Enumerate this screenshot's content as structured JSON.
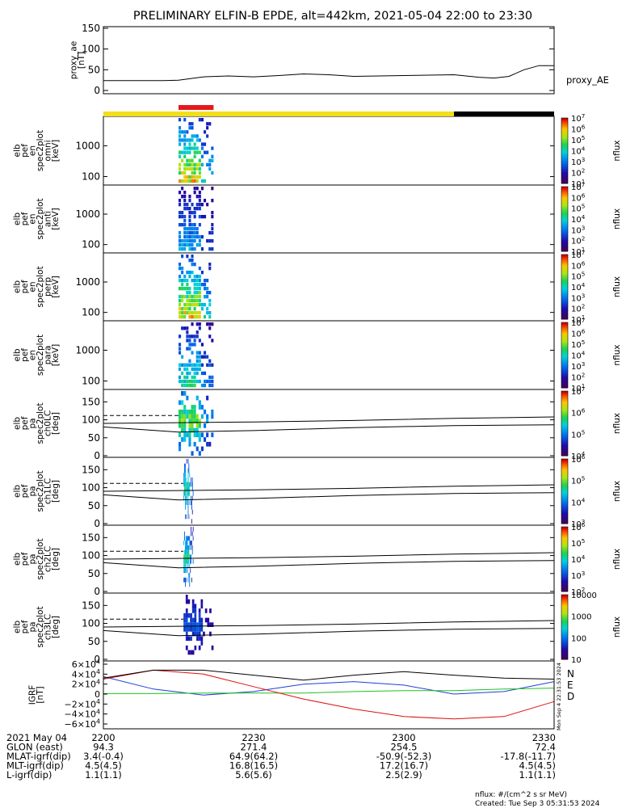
{
  "title": "PRELIMINARY ELFIN-B EPDE, alt=442km, 2021-05-04 22:00 to 23:30",
  "colors": {
    "bar_yellow": "#f2de1a",
    "bar_black": "#000000",
    "bar_red": "#e31a1c",
    "bx": "#1f3fd6",
    "by": "#22c022",
    "bz": "#e01010",
    "btot": "#000000"
  },
  "chart_data": [
    {
      "type": "line",
      "ylabel_lines": [
        "proxy_ae",
        "[nT]"
      ],
      "series_label": "proxy_AE",
      "ylim": [
        0,
        150
      ],
      "yticks": [
        "0",
        "50",
        "100",
        "150"
      ],
      "x": [
        "22:00",
        "22:03",
        "22:06",
        "22:09",
        "22:12",
        "22:15",
        "22:20",
        "22:25",
        "22:30",
        "22:35",
        "22:40",
        "22:45",
        "22:50",
        "22:55",
        "23:00",
        "23:05",
        "23:10",
        "23:15",
        "23:18",
        "23:21",
        "23:24",
        "23:27",
        "23:30"
      ],
      "values": [
        24,
        24,
        24,
        24,
        24,
        25,
        33,
        35,
        33,
        36,
        40,
        38,
        34,
        35,
        36,
        37,
        38,
        32,
        30,
        34,
        50,
        60,
        60
      ]
    },
    {
      "type": "heatmap",
      "ylabel_lines": [
        "elb",
        "pef",
        "en",
        "spec2plot",
        "omni",
        "[keV]"
      ],
      "yscale": "log",
      "ylim": [
        60,
        8000
      ],
      "yticks": [
        "100",
        "1000"
      ],
      "colorbar": {
        "label": "nflux",
        "ticks": [
          "10^1",
          "10^2",
          "10^3",
          "10^4",
          "10^5",
          "10^6",
          "10^7"
        ]
      },
      "active_window": [
        "22:15",
        "22:22"
      ],
      "peak_flux": 1000000
    },
    {
      "type": "heatmap",
      "ylabel_lines": [
        "elb",
        "pef",
        "en",
        "spec2plot",
        "anti",
        "[keV]"
      ],
      "yscale": "log",
      "ylim": [
        60,
        8000
      ],
      "yticks": [
        "100",
        "1000"
      ],
      "colorbar": {
        "label": "nflux",
        "ticks": [
          "10^1",
          "10^2",
          "10^3",
          "10^4",
          "10^5",
          "10^6",
          "10^7"
        ]
      },
      "active_window": [
        "22:15",
        "22:22"
      ],
      "peak_flux": 1000
    },
    {
      "type": "heatmap",
      "ylabel_lines": [
        "elb",
        "pef",
        "en",
        "spec2plot",
        "perp",
        "[keV]"
      ],
      "yscale": "log",
      "ylim": [
        60,
        8000
      ],
      "yticks": [
        "100",
        "1000"
      ],
      "colorbar": {
        "label": "nflux",
        "ticks": [
          "10^1",
          "10^2",
          "10^3",
          "10^4",
          "10^5",
          "10^6",
          "10^7"
        ]
      },
      "active_window": [
        "22:15",
        "22:22"
      ],
      "peak_flux": 1000000
    },
    {
      "type": "heatmap",
      "ylabel_lines": [
        "elb",
        "pef",
        "en",
        "spec2plot",
        "para",
        "[keV]"
      ],
      "yscale": "log",
      "ylim": [
        60,
        8000
      ],
      "yticks": [
        "100",
        "1000"
      ],
      "colorbar": {
        "label": "nflux",
        "ticks": [
          "10^1",
          "10^2",
          "10^3",
          "10^4",
          "10^5",
          "10^6",
          "10^7"
        ]
      },
      "active_window": [
        "22:15",
        "22:22"
      ],
      "peak_flux": 10000
    },
    {
      "type": "heatmap",
      "ylabel_lines": [
        "elb",
        "pef",
        "pa",
        "spec2plot",
        "ch0LC",
        "[deg]"
      ],
      "yscale": "linear",
      "ylim": [
        0,
        180
      ],
      "yticks": [
        "0",
        "50",
        "100",
        "150"
      ],
      "colorbar": {
        "label": "nflux",
        "ticks": [
          "10^4",
          "10^5",
          "10^6",
          "10^7"
        ]
      },
      "active_window": [
        "22:15",
        "22:22"
      ],
      "peak_flux": 100000
    },
    {
      "type": "heatmap",
      "ylabel_lines": [
        "elb",
        "pef",
        "pa",
        "spec2plot",
        "ch1LC",
        "[deg]"
      ],
      "yscale": "linear",
      "ylim": [
        0,
        180
      ],
      "yticks": [
        "0",
        "50",
        "100",
        "150"
      ],
      "colorbar": {
        "label": "nflux",
        "ticks": [
          "10^3",
          "10^4",
          "10^5",
          "10^6"
        ]
      },
      "active_window": [
        "22:16",
        "22:18"
      ],
      "peak_flux": 10000
    },
    {
      "type": "heatmap",
      "ylabel_lines": [
        "elb",
        "pef",
        "pa",
        "spec2plot",
        "ch2LC",
        "[deg]"
      ],
      "yscale": "linear",
      "ylim": [
        0,
        180
      ],
      "yticks": [
        "0",
        "50",
        "100",
        "150"
      ],
      "colorbar": {
        "label": "nflux",
        "ticks": [
          "10^2",
          "10^3",
          "10^4",
          "10^5",
          "10^6"
        ]
      },
      "active_window": [
        "22:16",
        "22:18"
      ],
      "peak_flux": 10000
    },
    {
      "type": "heatmap",
      "ylabel_lines": [
        "elb",
        "pef",
        "pa",
        "spec2plot",
        "ch3LC",
        "[deg]"
      ],
      "yscale": "linear",
      "ylim": [
        0,
        180
      ],
      "yticks": [
        "0",
        "50",
        "100",
        "150"
      ],
      "colorbar": {
        "label": "nflux",
        "ticks": [
          "10",
          "100",
          "1000",
          "10000"
        ]
      },
      "active_window": [
        "22:16",
        "22:22"
      ],
      "peak_flux": 100
    },
    {
      "type": "line",
      "ylabel_lines": [
        "IGRF",
        "[nT]"
      ],
      "ylim": [
        -60000,
        60000
      ],
      "yticks": [
        "6×10^4",
        "4×10^4",
        "2×10^4",
        "0",
        "−2×10^4",
        "−4×10^4",
        "−6×10^4"
      ],
      "legend": [
        "N",
        "E",
        "D"
      ],
      "x": [
        "22:00",
        "22:10",
        "22:20",
        "22:30",
        "22:40",
        "22:50",
        "23:00",
        "23:10",
        "23:20",
        "23:30"
      ],
      "series": [
        {
          "name": "N",
          "values": [
            35000,
            10000,
            -2000,
            5000,
            20000,
            25000,
            18000,
            0,
            5000,
            25000
          ]
        },
        {
          "name": "E",
          "values": [
            1000,
            1000,
            2000,
            2000,
            2000,
            5000,
            7000,
            7000,
            10000,
            12000
          ]
        },
        {
          "name": "D",
          "values": [
            30000,
            48000,
            40000,
            15000,
            -10000,
            -30000,
            -45000,
            -50000,
            -45000,
            -15000
          ]
        },
        {
          "name": "|B|",
          "values": [
            32000,
            48000,
            48000,
            38000,
            28000,
            38000,
            45000,
            38000,
            32000,
            30000
          ]
        }
      ]
    }
  ],
  "time_axis": {
    "ticks": [
      "2200",
      "2230",
      "2300",
      "2330"
    ],
    "rows": [
      {
        "label": "2021 May 04",
        "values": [
          "2200",
          "2230",
          "2300",
          "2330"
        ]
      },
      {
        "label": "GLON (east)",
        "values": [
          "94.3",
          "271.4",
          "254.5",
          "72.4"
        ]
      },
      {
        "label": "MLAT-igrf(dip)",
        "values": [
          "3.4(-0.4)",
          "64.9(64.2)",
          "-50.9(-52.3)",
          "-17.8(-11.7)"
        ]
      },
      {
        "label": "MLT-igrf(dip)",
        "values": [
          "4.5(4.5)",
          "16.8(16.5)",
          "17.2(16.7)",
          "4.5(4.5)"
        ]
      },
      {
        "label": "L-igrf(dip)",
        "values": [
          "1.1(1.1)",
          "5.6(5.6)",
          "2.5(2.9)",
          "1.1(1.1)"
        ]
      }
    ]
  },
  "footer": {
    "units": "nflux: #/(cm^2 s sr MeV)",
    "created": "Created: Tue Sep  3 05:31:53 2024",
    "side_stamp": "Mon Sep  4 22:31:53 2024"
  }
}
